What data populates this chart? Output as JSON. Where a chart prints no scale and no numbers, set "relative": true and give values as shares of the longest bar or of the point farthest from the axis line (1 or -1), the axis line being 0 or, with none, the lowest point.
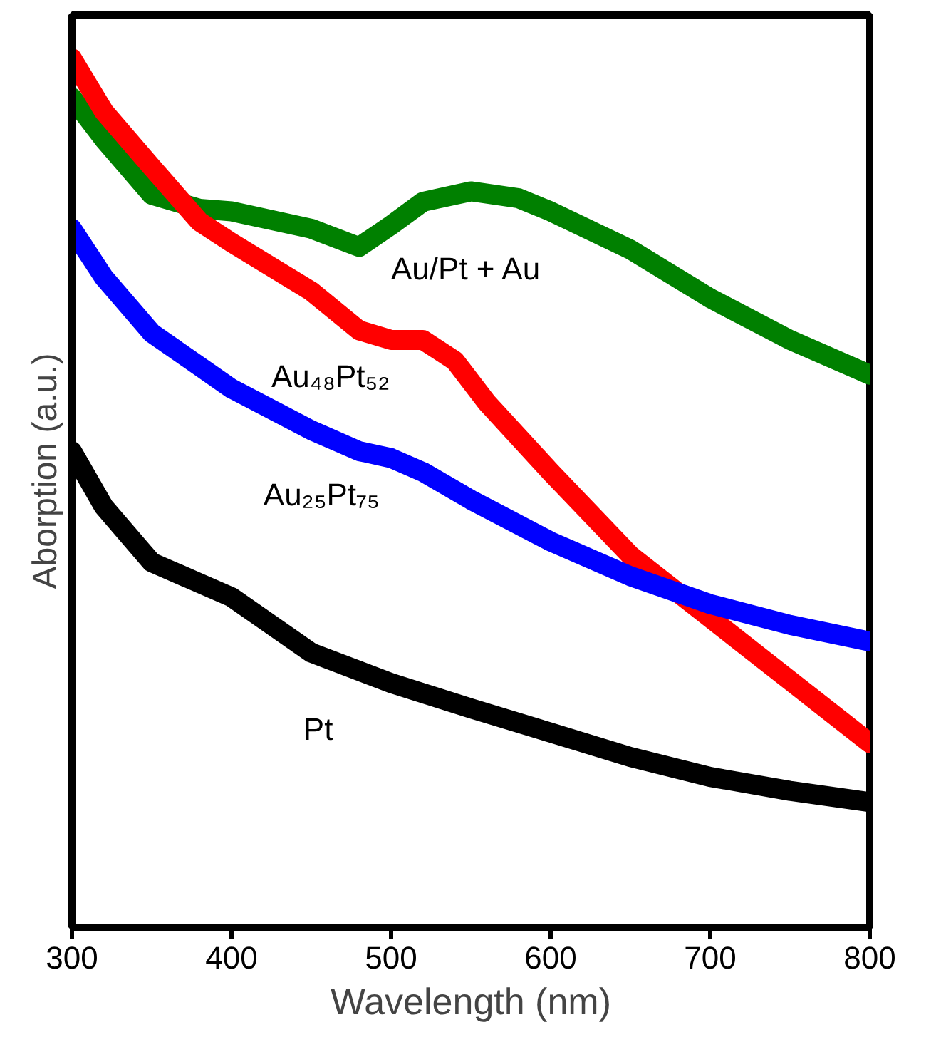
{
  "chart_data": {
    "type": "line",
    "relative": true,
    "xlabel": "Wavelength (nm)",
    "ylabel": "Aborption (a.u.)",
    "xlim": [
      300,
      800
    ],
    "xticks": [
      300,
      400,
      500,
      600,
      700,
      800
    ],
    "grid": false,
    "legend": false,
    "tick_labels": "x",
    "line_style": "solid",
    "series": [
      {
        "name": "Au/Pt + Au",
        "color": "#008000",
        "x": [
          300,
          320,
          350,
          380,
          400,
          450,
          480,
          500,
          520,
          550,
          580,
          600,
          650,
          700,
          750,
          800
        ],
        "values": [
          0.955,
          0.907,
          0.843,
          0.827,
          0.824,
          0.804,
          0.783,
          0.808,
          0.835,
          0.847,
          0.839,
          0.824,
          0.78,
          0.724,
          0.676,
          0.636
        ]
      },
      {
        "name": "Au₄₈Pt₅₂",
        "color": "#ff0000",
        "x": [
          300,
          320,
          350,
          380,
          400,
          450,
          480,
          500,
          520,
          540,
          560,
          600,
          650,
          700,
          750,
          800
        ],
        "values": [
          1.0,
          0.939,
          0.875,
          0.812,
          0.788,
          0.732,
          0.687,
          0.676,
          0.676,
          0.652,
          0.604,
          0.524,
          0.428,
          0.356,
          0.284,
          0.212
        ]
      },
      {
        "name": "Au₂₅Pt₇₅",
        "color": "#0000ff",
        "x": [
          300,
          320,
          350,
          400,
          450,
          480,
          500,
          520,
          550,
          600,
          650,
          700,
          750,
          800
        ],
        "values": [
          0.804,
          0.748,
          0.684,
          0.62,
          0.572,
          0.548,
          0.54,
          0.524,
          0.492,
          0.444,
          0.404,
          0.372,
          0.348,
          0.329
        ]
      },
      {
        "name": "Pt",
        "color": "#000000",
        "x": [
          300,
          320,
          350,
          380,
          400,
          450,
          500,
          550,
          600,
          650,
          700,
          750,
          800
        ],
        "values": [
          0.548,
          0.484,
          0.42,
          0.396,
          0.38,
          0.316,
          0.281,
          0.252,
          0.224,
          0.196,
          0.173,
          0.157,
          0.144
        ]
      }
    ]
  }
}
